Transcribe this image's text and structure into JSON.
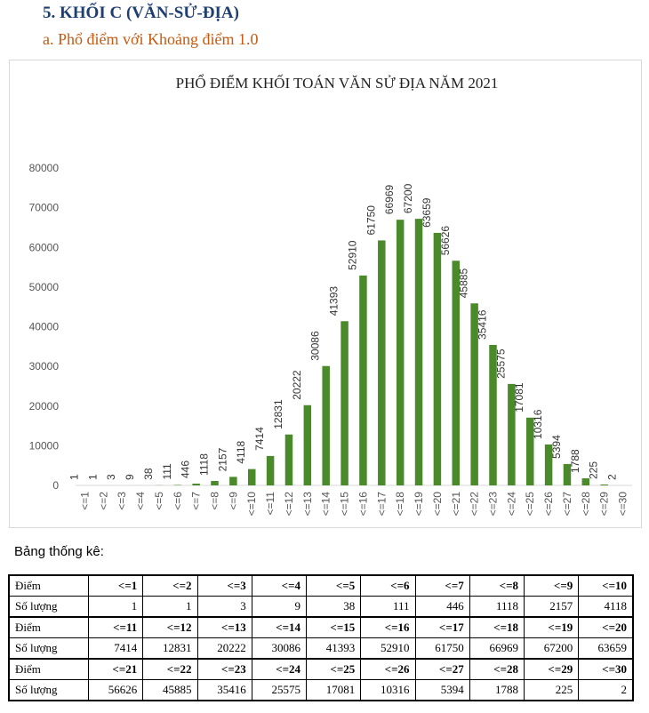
{
  "heading": "5.  KHỐI C (VĂN-SỬ-ĐỊA)",
  "subheading": "a.   Phổ điểm với Khoảng điểm 1.0",
  "colors": {
    "bar": "#4a8a2a",
    "axis": "#d9d9d9",
    "heading": "#1f3f72",
    "subheading": "#c55a11"
  },
  "chart_data": {
    "type": "bar",
    "title": "PHỔ ĐIỂM KHỐI TOÁN VĂN SỬ ĐỊA NĂM 2021",
    "categories": [
      "<=1",
      "<=2",
      "<=3",
      "<=4",
      "<=5",
      "<=6",
      "<=7",
      "<=8",
      "<=9",
      "<=10",
      "<=11",
      "<=12",
      "<=13",
      "<=14",
      "<=15",
      "<=16",
      "<=17",
      "<=18",
      "<=19",
      "<=20",
      "<=21",
      "<=22",
      "<=23",
      "<=24",
      "<=25",
      "<=26",
      "<=27",
      "<=28",
      "<=29",
      "<=30"
    ],
    "values": [
      1,
      1,
      3,
      9,
      38,
      111,
      446,
      1118,
      2157,
      4118,
      7414,
      12831,
      20222,
      30086,
      41393,
      52910,
      61750,
      66969,
      67200,
      63659,
      56626,
      45885,
      35416,
      25575,
      17081,
      10316,
      5394,
      1788,
      225,
      2
    ],
    "yticks": [
      0,
      10000,
      20000,
      30000,
      40000,
      50000,
      60000,
      70000,
      80000
    ],
    "ylim": [
      0,
      80000
    ],
    "grid": false,
    "data_labels": true,
    "legend": "none"
  },
  "stats": {
    "caption": "Bảng thống kê:",
    "diem_label": "Điểm",
    "so_luong_label": "Số lượng",
    "groups": [
      {
        "diem": [
          "<=1",
          "<=2",
          "<=3",
          "<=4",
          "<=5",
          "<=6",
          "<=7",
          "<=8",
          "<=9",
          "<=10"
        ],
        "so_luong": [
          "1",
          "1",
          "3",
          "9",
          "38",
          "111",
          "446",
          "1118",
          "2157",
          "4118"
        ]
      },
      {
        "diem": [
          "<=11",
          "<=12",
          "<=13",
          "<=14",
          "<=15",
          "<=16",
          "<=17",
          "<=18",
          "<=19",
          "<=20"
        ],
        "so_luong": [
          "7414",
          "12831",
          "20222",
          "30086",
          "41393",
          "52910",
          "61750",
          "66969",
          "67200",
          "63659"
        ]
      },
      {
        "diem": [
          "<=21",
          "<=22",
          "<=23",
          "<=24",
          "<=25",
          "<=26",
          "<=27",
          "<=28",
          "<=29",
          "<=30"
        ],
        "so_luong": [
          "56626",
          "45885",
          "35416",
          "25575",
          "17081",
          "10316",
          "5394",
          "1788",
          "225",
          "2"
        ]
      }
    ]
  }
}
